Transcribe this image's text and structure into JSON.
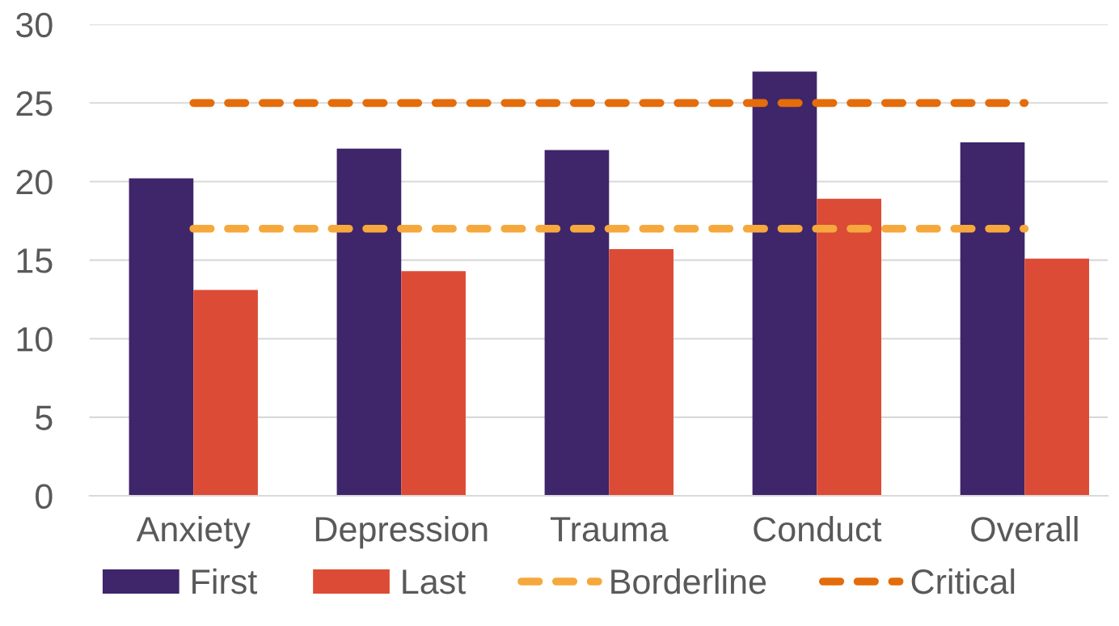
{
  "chart_data": {
    "type": "bar",
    "categories": [
      "Anxiety",
      "Depression",
      "Trauma",
      "Conduct",
      "Overall"
    ],
    "series": [
      {
        "name": "First",
        "color": "#3f2569",
        "values": [
          20.2,
          22.1,
          22.0,
          27.0,
          22.5
        ]
      },
      {
        "name": "Last",
        "color": "#dc4b36",
        "values": [
          13.1,
          14.3,
          15.7,
          18.9,
          15.1
        ]
      },
      {
        "name": "Borderline",
        "type": "line",
        "line_style": "dashed",
        "color": "#f6a83c",
        "values": [
          17,
          17,
          17,
          17,
          17
        ]
      },
      {
        "name": "Critical",
        "type": "line",
        "line_style": "dashed",
        "color": "#e46c0a",
        "values": [
          25,
          25,
          25,
          25,
          25
        ]
      }
    ],
    "ylim": [
      0,
      30
    ],
    "yticks": [
      0,
      5,
      10,
      15,
      20,
      25,
      30
    ],
    "grid": "y",
    "legend": "bottom",
    "marker": "none"
  }
}
